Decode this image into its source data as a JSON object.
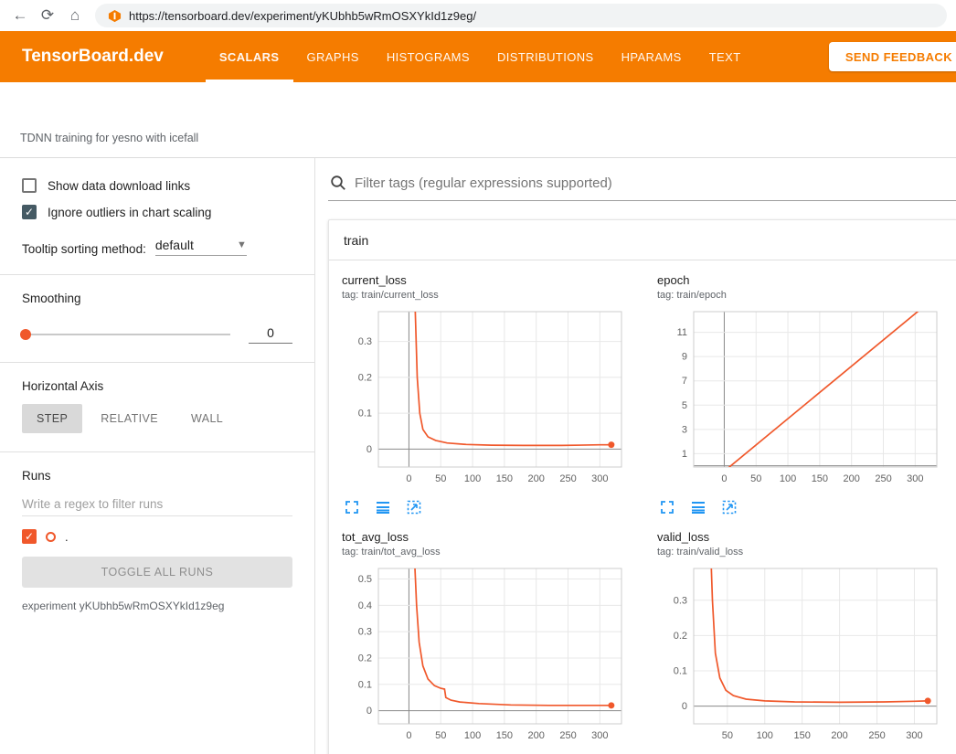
{
  "browser": {
    "url": "https://tensorboard.dev/experiment/yKUbhb5wRmOSXYkId1z9eg/"
  },
  "header": {
    "brand": "TensorBoard.dev",
    "tabs": [
      {
        "label": "SCALARS",
        "active": true
      },
      {
        "label": "GRAPHS",
        "active": false
      },
      {
        "label": "HISTOGRAMS",
        "active": false
      },
      {
        "label": "DISTRIBUTIONS",
        "active": false
      },
      {
        "label": "HPARAMS",
        "active": false
      },
      {
        "label": "TEXT",
        "active": false
      }
    ],
    "feedback_button": "SEND FEEDBACK"
  },
  "experiment_description": "TDNN training for yesno with icefall",
  "sidebar": {
    "show_download_links": {
      "label": "Show data download links",
      "checked": false
    },
    "ignore_outliers": {
      "label": "Ignore outliers in chart scaling",
      "checked": true
    },
    "tooltip_sorting": {
      "label": "Tooltip sorting method:",
      "value": "default"
    },
    "smoothing": {
      "label": "Smoothing",
      "value": "0"
    },
    "horizontal_axis": {
      "label": "Horizontal Axis",
      "options": [
        {
          "label": "STEP",
          "selected": true
        },
        {
          "label": "RELATIVE",
          "selected": false
        },
        {
          "label": "WALL",
          "selected": false
        }
      ]
    },
    "runs": {
      "label": "Runs",
      "filter_placeholder": "Write a regex to filter runs",
      "items": [
        {
          "name": ".",
          "checked": true,
          "color": "#f0582b"
        }
      ],
      "toggle_all_button": "TOGGLE ALL RUNS",
      "experiment_note": "experiment yKUbhb5wRmOSXYkId1z9eg"
    }
  },
  "main": {
    "filter_placeholder": "Filter tags (regular expressions supported)",
    "section_title": "train"
  },
  "colors": {
    "header_accent": "#f57c00",
    "run_color": "#f0582b",
    "chart_icon_blue": "#2196f3"
  },
  "chart_data": [
    {
      "type": "line",
      "title": "current_loss",
      "tag_line": "tag: train/current_loss",
      "run": ".",
      "color": "#f0582b",
      "x_domain": [
        -48,
        334
      ],
      "y_domain": [
        -0.05,
        0.383
      ],
      "x_ticks": [
        "0",
        "50",
        "100",
        "150",
        "200",
        "250",
        "300"
      ],
      "y_ticks": [
        "0",
        "0.1",
        "0.2",
        "0.3"
      ],
      "points": [
        [
          7,
          0.6
        ],
        [
          10,
          0.38
        ],
        [
          13,
          0.2
        ],
        [
          17,
          0.1
        ],
        [
          22,
          0.055
        ],
        [
          30,
          0.034
        ],
        [
          42,
          0.024
        ],
        [
          60,
          0.017
        ],
        [
          90,
          0.013
        ],
        [
          130,
          0.011
        ],
        [
          180,
          0.01
        ],
        [
          240,
          0.01
        ],
        [
          300,
          0.012
        ],
        [
          318,
          0.012
        ]
      ],
      "end_dot": true
    },
    {
      "type": "line",
      "title": "epoch",
      "tag_line": "tag: train/epoch",
      "run": ".",
      "color": "#f0582b",
      "x_domain": [
        -48,
        334
      ],
      "y_domain": [
        -0.1,
        12.7
      ],
      "x_ticks": [
        "0",
        "50",
        "100",
        "150",
        "200",
        "250",
        "300"
      ],
      "y_ticks": [
        "1",
        "3",
        "5",
        "7",
        "9",
        "11"
      ],
      "points": [
        [
          0,
          -0.45
        ],
        [
          320,
          13.4
        ]
      ],
      "end_dot": false
    },
    {
      "type": "line",
      "title": "tot_avg_loss",
      "tag_line": "tag: train/tot_avg_loss",
      "run": ".",
      "color": "#f0582b",
      "x_domain": [
        -48,
        334
      ],
      "y_domain": [
        -0.05,
        0.54
      ],
      "x_ticks": [
        "0",
        "50",
        "100",
        "150",
        "200",
        "250",
        "300"
      ],
      "y_ticks": [
        "0",
        "0.1",
        "0.2",
        "0.3",
        "0.4",
        "0.5"
      ],
      "points": [
        [
          8,
          0.62
        ],
        [
          12,
          0.4
        ],
        [
          16,
          0.26
        ],
        [
          22,
          0.17
        ],
        [
          30,
          0.12
        ],
        [
          40,
          0.095
        ],
        [
          50,
          0.085
        ],
        [
          56,
          0.082
        ],
        [
          58,
          0.05
        ],
        [
          66,
          0.04
        ],
        [
          80,
          0.033
        ],
        [
          110,
          0.027
        ],
        [
          160,
          0.022
        ],
        [
          220,
          0.02
        ],
        [
          300,
          0.02
        ],
        [
          318,
          0.02
        ]
      ],
      "end_dot": true
    },
    {
      "type": "line",
      "title": "valid_loss",
      "tag_line": "tag: train/valid_loss",
      "run": ".",
      "color": "#f0582b",
      "x_domain": [
        5,
        330
      ],
      "y_domain": [
        -0.05,
        0.39
      ],
      "x_ticks": [
        "50",
        "100",
        "150",
        "200",
        "250",
        "300"
      ],
      "y_ticks": [
        "0",
        "0.1",
        "0.2",
        "0.3"
      ],
      "points": [
        [
          26,
          0.55
        ],
        [
          30,
          0.3
        ],
        [
          34,
          0.15
        ],
        [
          40,
          0.08
        ],
        [
          48,
          0.045
        ],
        [
          58,
          0.03
        ],
        [
          75,
          0.02
        ],
        [
          100,
          0.015
        ],
        [
          140,
          0.012
        ],
        [
          200,
          0.011
        ],
        [
          260,
          0.012
        ],
        [
          300,
          0.014
        ],
        [
          318,
          0.015
        ]
      ],
      "end_dot": true
    }
  ]
}
